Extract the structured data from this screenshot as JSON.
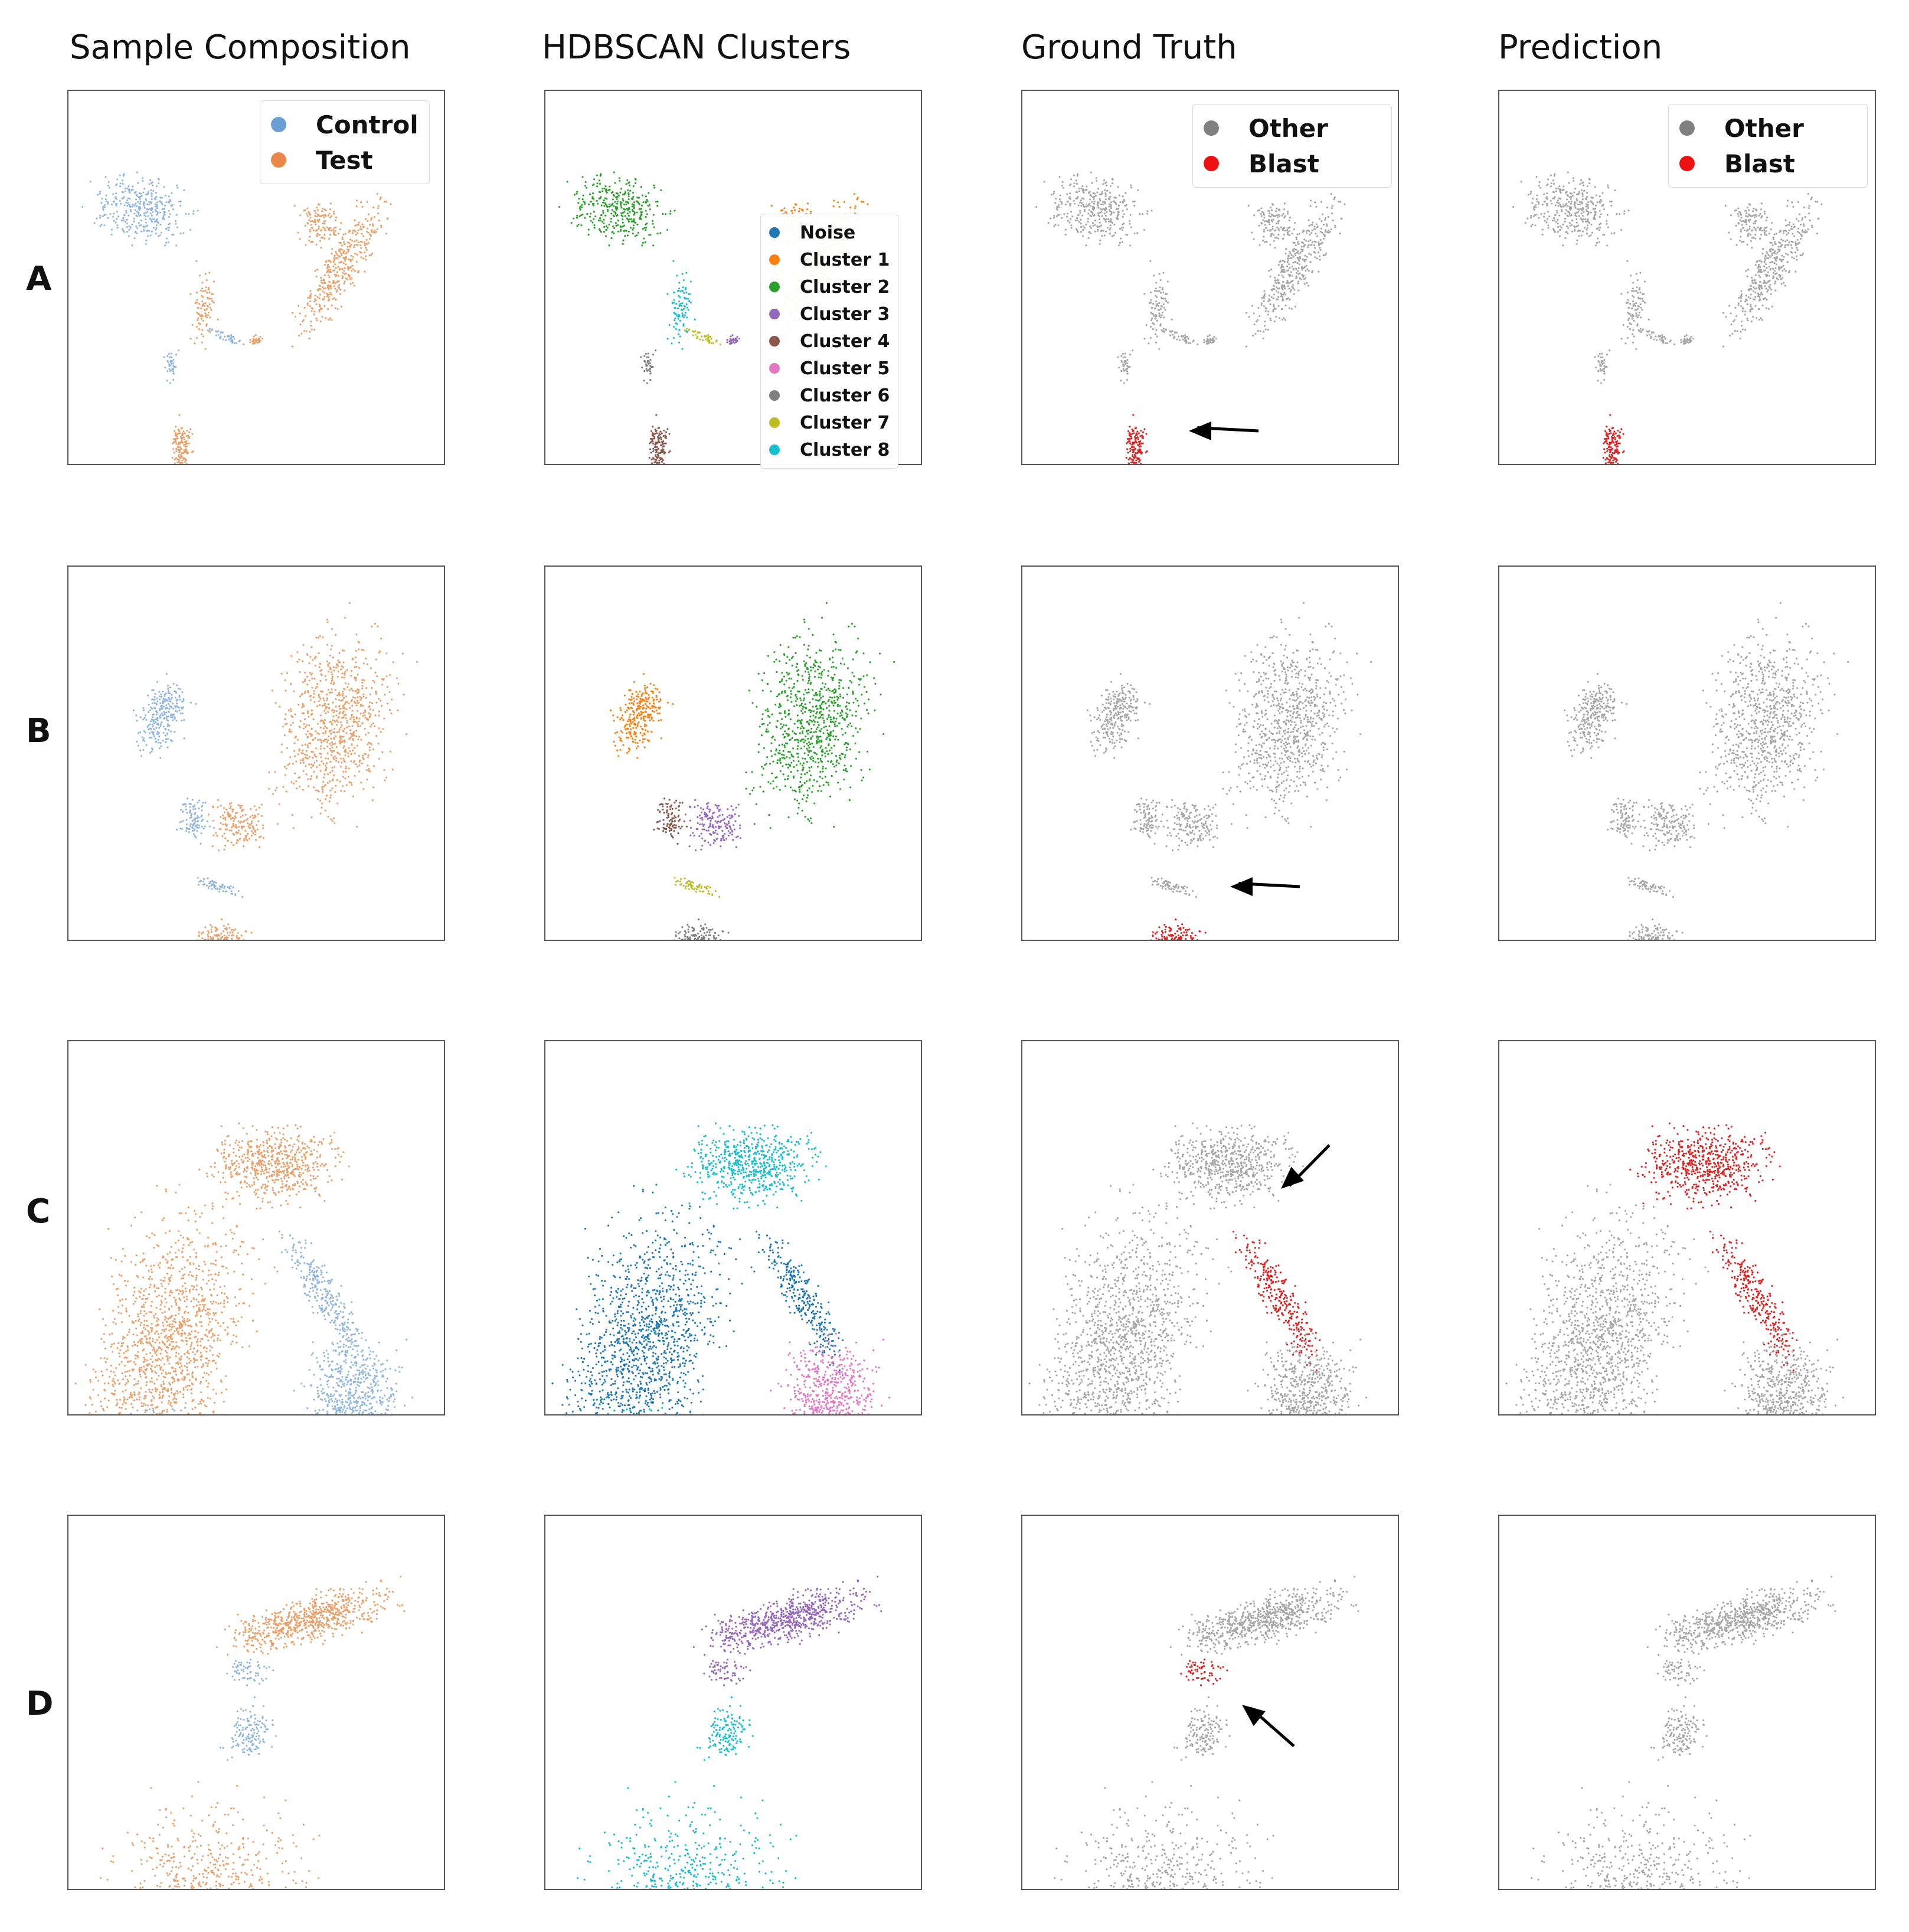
{
  "figure": {
    "columns": [
      "Sample Composition",
      "HDBSCAN Clusters",
      "Ground Truth",
      "Prediction"
    ],
    "rows": [
      "A",
      "B",
      "C",
      "D"
    ]
  },
  "legends": {
    "composition": [
      {
        "label": "Control",
        "color": "#6a9fd4"
      },
      {
        "label": "Test",
        "color": "#e8884a"
      }
    ],
    "clusters": [
      {
        "label": "Noise",
        "color": "#1f77b4"
      },
      {
        "label": "Cluster 1",
        "color": "#ff7f0e"
      },
      {
        "label": "Cluster 2",
        "color": "#2ca02c"
      },
      {
        "label": "Cluster 3",
        "color": "#9467bd"
      },
      {
        "label": "Cluster 4",
        "color": "#8c564b"
      },
      {
        "label": "Cluster 5",
        "color": "#e377c2"
      },
      {
        "label": "Cluster 6",
        "color": "#7f7f7f"
      },
      {
        "label": "Cluster 7",
        "color": "#bcbd22"
      },
      {
        "label": "Cluster 8",
        "color": "#17becf"
      }
    ],
    "blast": [
      {
        "label": "Other",
        "color": "#808080"
      },
      {
        "label": "Blast",
        "color": "#ee1111"
      }
    ]
  },
  "chart_data": {
    "type": "scatter",
    "description_axes": "UMAP embedding panels without visible axes or ticks",
    "colors": {
      "control": "#92b7de",
      "test": "#e9a06a",
      "other": "#a6a6a6",
      "blast": "#dd2222"
    }
  }
}
